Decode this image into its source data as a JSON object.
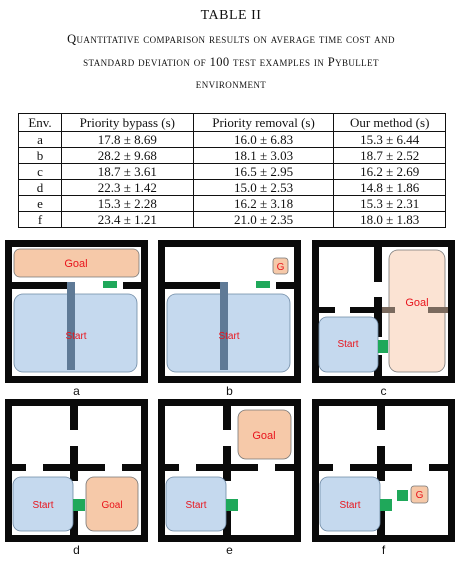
{
  "caption": {
    "title": "TABLE II",
    "line1": "Quantitative comparison results on average time cost and",
    "line2": "standard deviation of 100 test examples in Pybullet",
    "line3": "environment"
  },
  "table": {
    "headers": [
      "Env.",
      "Priority bypass (s)",
      "Priority removal (s)",
      "Our method (s)"
    ],
    "rows": [
      [
        "a",
        "17.8 ± 8.69",
        "16.0 ± 6.83",
        "15.3 ± 6.44"
      ],
      [
        "b",
        "28.2 ± 9.68",
        "18.1 ± 3.03",
        "18.7 ± 2.52"
      ],
      [
        "c",
        "18.7 ± 3.61",
        "16.5 ± 2.95",
        "16.2 ± 2.69"
      ],
      [
        "d",
        "22.3 ± 1.42",
        "15.0 ± 2.53",
        "14.8 ± 1.86"
      ],
      [
        "e",
        "15.3 ± 2.28",
        "16.2 ± 3.18",
        "15.3 ± 2.31"
      ],
      [
        "f",
        "23.4 ± 1.21",
        "21.0 ± 2.35",
        "18.0 ± 1.83"
      ]
    ]
  },
  "figure": {
    "colors": {
      "wall": "#0a0a0a",
      "start": "#c5d9ee",
      "goal": "#f6c9a9",
      "goal_light": "#fbe3d3",
      "door": "#1fa85a",
      "bar": "#5f7a96",
      "label_red": "#e8141c"
    },
    "panels": [
      {
        "label": "a",
        "start_text": "Start",
        "goal_text": "Goal"
      },
      {
        "label": "b",
        "start_text": "Start",
        "goal_text": "G"
      },
      {
        "label": "c",
        "start_text": "Start",
        "goal_text": "Goal"
      },
      {
        "label": "d",
        "start_text": "Start",
        "goal_text": "Goal"
      },
      {
        "label": "e",
        "start_text": "Start",
        "goal_text": "Goal"
      },
      {
        "label": "f",
        "start_text": "Start",
        "goal_text": "G"
      }
    ]
  }
}
